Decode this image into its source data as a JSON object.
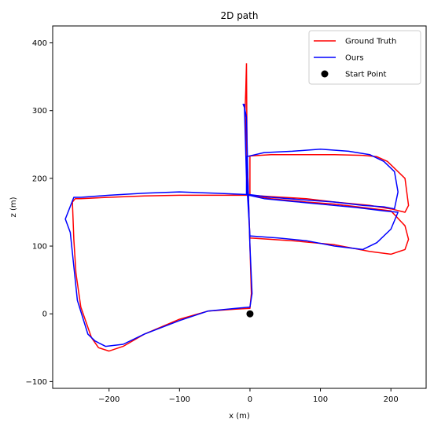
{
  "chart_data": {
    "type": "line",
    "title": "2D path",
    "xlabel": "x (m)",
    "ylabel": "z (m)",
    "xlim": [
      -280,
      250
    ],
    "ylim": [
      -110,
      425
    ],
    "xticks": [
      -200,
      -100,
      0,
      100,
      200
    ],
    "yticks": [
      -100,
      0,
      100,
      200,
      300,
      400
    ],
    "grid": false,
    "legend_position": "top-right",
    "series": [
      {
        "name": "Ground Truth",
        "color": "#ff0000",
        "x": [
          -5,
          -6,
          -7,
          -3,
          0,
          2,
          0,
          -20,
          -60,
          -100,
          -150,
          -180,
          -200,
          -215,
          -225,
          -240,
          -247,
          -250,
          -252,
          -248,
          -240,
          -200,
          -150,
          -100,
          -50,
          0,
          30,
          80,
          120,
          170,
          200,
          220,
          225,
          220,
          210,
          195,
          180,
          160,
          120,
          80,
          30,
          0,
          0,
          30,
          80,
          120,
          160,
          200,
          220,
          225,
          220,
          200,
          170,
          120,
          60,
          0,
          -4,
          -5
        ],
        "y": [
          370,
          330,
          300,
          200,
          100,
          30,
          8,
          7,
          4,
          -8,
          -30,
          -48,
          -55,
          -50,
          -35,
          10,
          60,
          110,
          165,
          170,
          170,
          172,
          174,
          175,
          175,
          175,
          173,
          170,
          165,
          160,
          155,
          150,
          160,
          200,
          210,
          225,
          232,
          234,
          235,
          235,
          235,
          233,
          175,
          170,
          165,
          162,
          157,
          152,
          130,
          110,
          95,
          88,
          92,
          102,
          108,
          112,
          200,
          370
        ]
      },
      {
        "name": "Ours",
        "color": "#0000ff",
        "x": [
          -10,
          -8,
          -5,
          -3,
          0,
          3,
          0,
          -20,
          -60,
          -100,
          -150,
          -180,
          -205,
          -220,
          -230,
          -245,
          -250,
          -255,
          -262,
          -250,
          -240,
          -200,
          -150,
          -100,
          -50,
          0,
          30,
          80,
          120,
          160,
          190,
          205,
          210,
          205,
          190,
          170,
          140,
          100,
          60,
          20,
          -5,
          -5,
          20,
          60,
          100,
          150,
          190,
          210,
          200,
          180,
          160,
          120,
          80,
          40,
          0,
          -5,
          -8
        ],
        "y": [
          310,
          305,
          290,
          200,
          100,
          30,
          10,
          8,
          4,
          -10,
          -30,
          -45,
          -48,
          -40,
          -30,
          20,
          70,
          120,
          140,
          172,
          172,
          175,
          178,
          180,
          178,
          176,
          172,
          168,
          165,
          160,
          158,
          155,
          180,
          210,
          225,
          235,
          240,
          243,
          240,
          238,
          232,
          176,
          170,
          166,
          162,
          157,
          152,
          150,
          125,
          105,
          95,
          100,
          108,
          112,
          115,
          200,
          310
        ]
      }
    ],
    "points": [
      {
        "name": "Start Point",
        "color": "#000000",
        "x": 0,
        "y": 0
      }
    ]
  }
}
